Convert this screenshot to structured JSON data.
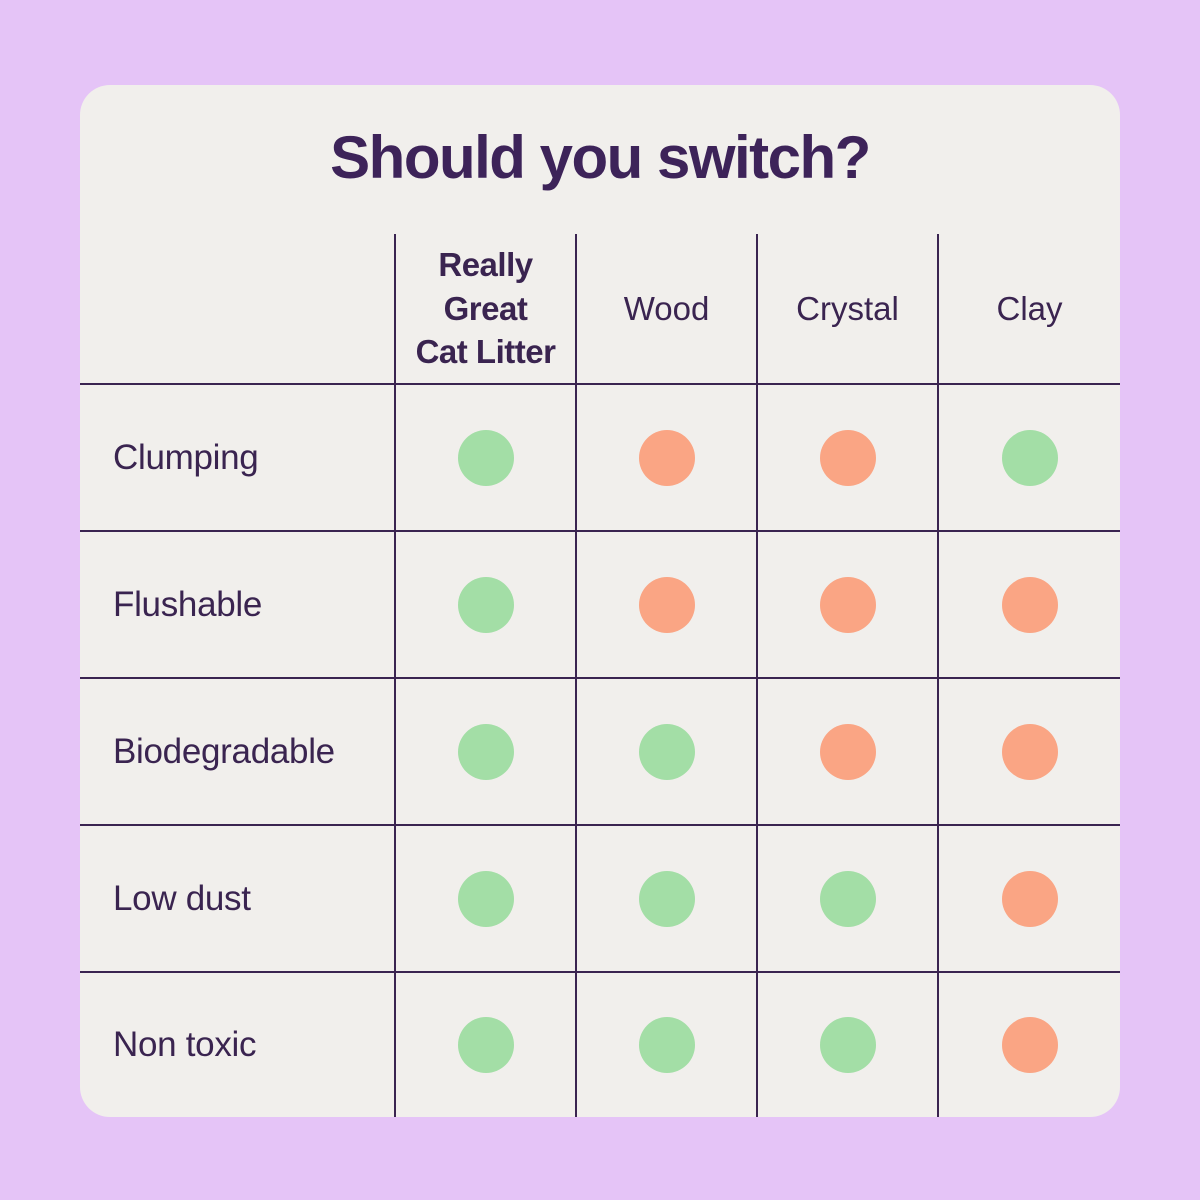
{
  "colors": {
    "page-bg": "#e5c4f7",
    "card-bg": "#f1efec",
    "line": "#3a2450",
    "title": "#3d2359",
    "text": "#3a2450",
    "green": "#a3dea6",
    "orange": "#faa584"
  },
  "chart_data": {
    "type": "table",
    "title": "Should you switch?",
    "columns": [
      "Really Great Cat Litter",
      "Wood",
      "Crystal",
      "Clay"
    ],
    "columns_display": [
      "Really\nGreat\nCat Litter",
      "Wood",
      "Crystal",
      "Clay"
    ],
    "rows": [
      "Clumping",
      "Flushable",
      "Biodegradable",
      "Low dust",
      "Non toxic"
    ],
    "values": [
      [
        "yes",
        "no",
        "no",
        "yes"
      ],
      [
        "yes",
        "no",
        "no",
        "no"
      ],
      [
        "yes",
        "yes",
        "no",
        "no"
      ],
      [
        "yes",
        "yes",
        "yes",
        "no"
      ],
      [
        "yes",
        "yes",
        "yes",
        "no"
      ]
    ],
    "legend": "green dot = has feature, orange dot = lacks feature"
  }
}
